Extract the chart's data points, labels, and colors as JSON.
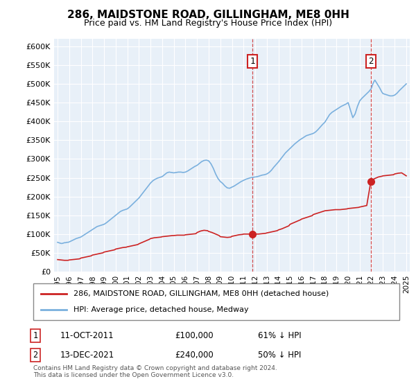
{
  "title": "286, MAIDSTONE ROAD, GILLINGHAM, ME8 0HH",
  "subtitle": "Price paid vs. HM Land Registry's House Price Index (HPI)",
  "ylim": [
    0,
    620000
  ],
  "yticks": [
    0,
    50000,
    100000,
    150000,
    200000,
    250000,
    300000,
    350000,
    400000,
    450000,
    500000,
    550000,
    600000
  ],
  "xlim_start": 1994.7,
  "xlim_end": 2025.3,
  "chart_bg_color": "#e8f0f8",
  "legend_label_red": "286, MAIDSTONE ROAD, GILLINGHAM, ME8 0HH (detached house)",
  "legend_label_blue": "HPI: Average price, detached house, Medway",
  "sale1_date": "11-OCT-2011",
  "sale1_price": 100000,
  "sale1_label": "61% ↓ HPI",
  "sale1_year": 2011.78,
  "sale2_date": "13-DEC-2021",
  "sale2_price": 240000,
  "sale2_label": "50% ↓ HPI",
  "sale2_year": 2021.95,
  "footnote": "Contains HM Land Registry data © Crown copyright and database right 2024.\nThis data is licensed under the Open Government Licence v3.0.",
  "hpi_years": [
    1995.0,
    1995.1,
    1995.2,
    1995.3,
    1995.4,
    1995.5,
    1995.6,
    1995.7,
    1995.8,
    1995.9,
    1996.0,
    1996.2,
    1996.4,
    1996.6,
    1996.8,
    1997.0,
    1997.2,
    1997.4,
    1997.6,
    1997.8,
    1998.0,
    1998.2,
    1998.4,
    1998.6,
    1998.8,
    1999.0,
    1999.2,
    1999.4,
    1999.6,
    1999.8,
    2000.0,
    2000.2,
    2000.4,
    2000.6,
    2000.8,
    2001.0,
    2001.2,
    2001.4,
    2001.6,
    2001.8,
    2002.0,
    2002.2,
    2002.4,
    2002.6,
    2002.8,
    2003.0,
    2003.2,
    2003.4,
    2003.6,
    2003.8,
    2004.0,
    2004.2,
    2004.4,
    2004.6,
    2004.8,
    2005.0,
    2005.2,
    2005.4,
    2005.6,
    2005.8,
    2006.0,
    2006.2,
    2006.4,
    2006.6,
    2006.8,
    2007.0,
    2007.2,
    2007.4,
    2007.6,
    2007.8,
    2008.0,
    2008.2,
    2008.4,
    2008.6,
    2008.8,
    2009.0,
    2009.2,
    2009.4,
    2009.6,
    2009.8,
    2010.0,
    2010.2,
    2010.4,
    2010.6,
    2010.8,
    2011.0,
    2011.2,
    2011.4,
    2011.6,
    2011.8,
    2012.0,
    2012.2,
    2012.4,
    2012.6,
    2012.8,
    2013.0,
    2013.2,
    2013.4,
    2013.6,
    2013.8,
    2014.0,
    2014.2,
    2014.4,
    2014.6,
    2014.8,
    2015.0,
    2015.2,
    2015.4,
    2015.6,
    2015.8,
    2016.0,
    2016.2,
    2016.4,
    2016.6,
    2016.8,
    2017.0,
    2017.2,
    2017.4,
    2017.6,
    2017.8,
    2018.0,
    2018.2,
    2018.4,
    2018.6,
    2018.8,
    2019.0,
    2019.2,
    2019.4,
    2019.6,
    2019.8,
    2020.0,
    2020.2,
    2020.4,
    2020.6,
    2020.8,
    2021.0,
    2021.2,
    2021.4,
    2021.6,
    2021.8,
    2022.0,
    2022.1,
    2022.2,
    2022.3,
    2022.4,
    2022.5,
    2022.6,
    2022.7,
    2022.8,
    2022.9,
    2023.0,
    2023.2,
    2023.4,
    2023.6,
    2023.8,
    2024.0,
    2024.2,
    2024.4,
    2024.6,
    2024.8,
    2025.0
  ],
  "hpi_values": [
    78000,
    77000,
    76000,
    75000,
    75000,
    76000,
    77000,
    77000,
    78000,
    78000,
    79000,
    82000,
    85000,
    88000,
    90000,
    92000,
    96000,
    100000,
    104000,
    108000,
    112000,
    116000,
    120000,
    122000,
    124000,
    126000,
    130000,
    135000,
    140000,
    145000,
    150000,
    155000,
    160000,
    163000,
    165000,
    167000,
    172000,
    178000,
    184000,
    190000,
    196000,
    204000,
    212000,
    220000,
    228000,
    236000,
    242000,
    246000,
    249000,
    251000,
    253000,
    258000,
    263000,
    265000,
    264000,
    263000,
    264000,
    265000,
    265000,
    264000,
    265000,
    268000,
    272000,
    276000,
    280000,
    283000,
    288000,
    293000,
    296000,
    297000,
    295000,
    287000,
    275000,
    260000,
    248000,
    240000,
    235000,
    228000,
    223000,
    222000,
    225000,
    228000,
    232000,
    236000,
    240000,
    243000,
    246000,
    248000,
    250000,
    251000,
    252000,
    253000,
    255000,
    257000,
    258000,
    260000,
    264000,
    270000,
    278000,
    285000,
    292000,
    300000,
    308000,
    316000,
    322000,
    328000,
    334000,
    340000,
    345000,
    350000,
    354000,
    358000,
    362000,
    364000,
    366000,
    368000,
    372000,
    378000,
    385000,
    392000,
    398000,
    408000,
    418000,
    424000,
    428000,
    432000,
    436000,
    440000,
    443000,
    446000,
    450000,
    430000,
    410000,
    420000,
    440000,
    455000,
    462000,
    468000,
    474000,
    480000,
    488000,
    498000,
    505000,
    510000,
    505000,
    500000,
    495000,
    490000,
    484000,
    478000,
    474000,
    472000,
    470000,
    468000,
    468000,
    470000,
    475000,
    482000,
    488000,
    494000,
    500000
  ],
  "price_years": [
    1995.0,
    1995.3,
    1995.6,
    1995.9,
    1996.0,
    1996.3,
    1996.6,
    1996.9,
    1997.0,
    1997.3,
    1997.6,
    1997.9,
    1998.0,
    1998.3,
    1998.6,
    1998.9,
    1999.0,
    1999.3,
    1999.6,
    1999.9,
    2000.0,
    2000.3,
    2000.6,
    2000.9,
    2001.0,
    2001.3,
    2001.6,
    2001.9,
    2002.0,
    2002.3,
    2002.6,
    2002.9,
    2003.0,
    2003.3,
    2003.6,
    2003.9,
    2004.0,
    2004.3,
    2004.6,
    2004.9,
    2005.0,
    2005.3,
    2005.6,
    2005.9,
    2006.0,
    2006.3,
    2006.6,
    2006.9,
    2007.0,
    2007.3,
    2007.6,
    2007.9,
    2008.0,
    2008.3,
    2008.6,
    2008.9,
    2009.0,
    2009.3,
    2009.6,
    2009.9,
    2010.0,
    2010.3,
    2010.6,
    2010.9,
    2011.0,
    2011.3,
    2011.6,
    2011.78,
    2012.0,
    2012.3,
    2012.6,
    2012.9,
    2013.0,
    2013.3,
    2013.6,
    2013.9,
    2014.0,
    2014.3,
    2014.6,
    2014.9,
    2015.0,
    2015.3,
    2015.6,
    2015.9,
    2016.0,
    2016.3,
    2016.6,
    2016.9,
    2017.0,
    2017.3,
    2017.6,
    2017.9,
    2018.0,
    2018.3,
    2018.6,
    2018.9,
    2019.0,
    2019.3,
    2019.6,
    2019.9,
    2020.0,
    2020.3,
    2020.6,
    2020.9,
    2021.0,
    2021.3,
    2021.6,
    2021.95,
    2022.0,
    2022.3,
    2022.6,
    2022.9,
    2023.0,
    2023.3,
    2023.6,
    2023.9,
    2024.0,
    2024.3,
    2024.6,
    2025.0
  ],
  "price_values": [
    32000,
    31000,
    30000,
    30000,
    31000,
    32000,
    33000,
    34000,
    36000,
    38000,
    40000,
    42000,
    44000,
    46000,
    48000,
    50000,
    52000,
    54000,
    56000,
    58000,
    60000,
    62000,
    64000,
    65000,
    66000,
    68000,
    70000,
    72000,
    74000,
    78000,
    82000,
    86000,
    88000,
    90000,
    91000,
    92000,
    93000,
    94000,
    95000,
    96000,
    96000,
    97000,
    97000,
    97000,
    98000,
    99000,
    100000,
    101000,
    104000,
    108000,
    110000,
    109000,
    107000,
    104000,
    100000,
    96000,
    93000,
    92000,
    91000,
    92000,
    94000,
    96000,
    98000,
    99000,
    100000,
    100000,
    100000,
    100000,
    100000,
    100000,
    101000,
    102000,
    103000,
    105000,
    107000,
    109000,
    111000,
    114000,
    118000,
    122000,
    126000,
    130000,
    134000,
    138000,
    140000,
    143000,
    146000,
    149000,
    152000,
    155000,
    158000,
    161000,
    162000,
    163000,
    164000,
    165000,
    165000,
    165000,
    166000,
    167000,
    168000,
    169000,
    170000,
    171000,
    172000,
    174000,
    176000,
    240000,
    243000,
    248000,
    252000,
    254000,
    255000,
    256000,
    257000,
    258000,
    260000,
    262000,
    263000,
    255000
  ]
}
